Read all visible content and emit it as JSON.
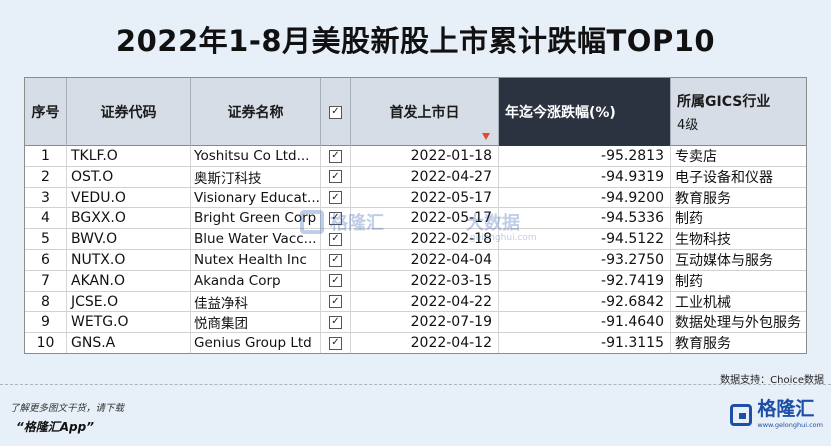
{
  "title": "2022年1-8月美股新股上市累计跌幅TOP10",
  "table": {
    "headers": {
      "no": "序号",
      "code": "证券代码",
      "name": "证券名称",
      "check": "☑",
      "date": "首发上市日",
      "pct": "年迄今涨跌幅(%)",
      "industry": "所属GICS行业",
      "industry_level": "4级"
    },
    "rows": [
      {
        "no": "1",
        "code": "TKLF.O",
        "name": "Yoshitsu Co Ltd...",
        "date": "2022-01-18",
        "pct": "-95.2813",
        "industry": "专卖店"
      },
      {
        "no": "2",
        "code": "OST.O",
        "name": "奥斯汀科技",
        "date": "2022-04-27",
        "pct": "-94.9319",
        "industry": "电子设备和仪器"
      },
      {
        "no": "3",
        "code": "VEDU.O",
        "name": "Visionary Educat...",
        "date": "2022-05-17",
        "pct": "-94.9200",
        "industry": "教育服务"
      },
      {
        "no": "4",
        "code": "BGXX.O",
        "name": "Bright Green Corp",
        "date": "2022-05-17",
        "pct": "-94.5336",
        "industry": "制药"
      },
      {
        "no": "5",
        "code": "BWV.O",
        "name": "Blue Water Vacc...",
        "date": "2022-02-18",
        "pct": "-94.5122",
        "industry": "生物科技"
      },
      {
        "no": "6",
        "code": "NUTX.O",
        "name": "Nutex Health Inc",
        "date": "2022-04-04",
        "pct": "-93.2750",
        "industry": "互动媒体与服务"
      },
      {
        "no": "7",
        "code": "AKAN.O",
        "name": "Akanda Corp",
        "date": "2022-03-15",
        "pct": "-92.7419",
        "industry": "制药"
      },
      {
        "no": "8",
        "code": "JCSE.O",
        "name": "佳益净科",
        "date": "2022-04-22",
        "pct": "-92.6842",
        "industry": "工业机械"
      },
      {
        "no": "9",
        "code": "WETG.O",
        "name": "悦商集团",
        "date": "2022-07-19",
        "pct": "-91.4640",
        "industry": "数据处理与外包服务"
      },
      {
        "no": "10",
        "code": "GNS.A",
        "name": "Genius Group Ltd",
        "date": "2022-04-12",
        "pct": "-91.3115",
        "industry": "教育服务"
      }
    ]
  },
  "source": "数据支持：Choice数据",
  "promo": {
    "line1": "了解更多图文干货，请下载",
    "line2": "“格隆汇App”"
  },
  "logo": {
    "name": "格隆汇",
    "url": "www.gelonghui.com"
  },
  "watermark": {
    "text": "格隆汇",
    "text2": "大数据",
    "url": "gelonghui.com"
  },
  "colors": {
    "background": "#e7f0f9",
    "header": "#d6dde6",
    "highlight_header": "#2b3340",
    "brand": "#1d4fa8",
    "filter_mark": "#e34a2a"
  }
}
